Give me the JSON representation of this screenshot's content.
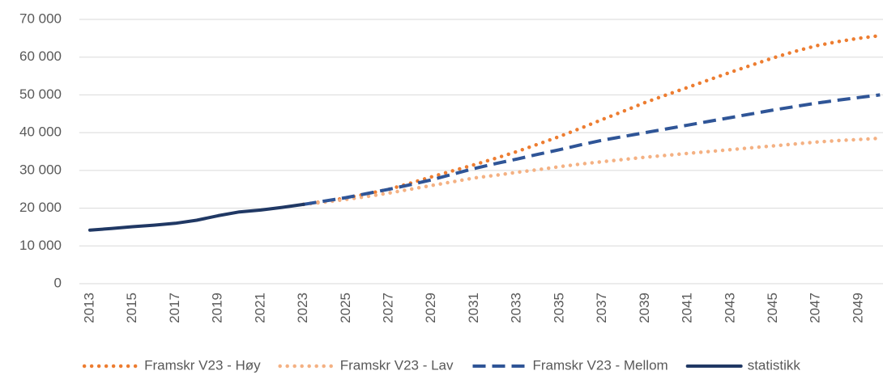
{
  "chart_data": {
    "type": "line",
    "x": [
      2013,
      2014,
      2015,
      2016,
      2017,
      2018,
      2019,
      2020,
      2021,
      2022,
      2023,
      2024,
      2025,
      2026,
      2027,
      2028,
      2029,
      2030,
      2031,
      2032,
      2033,
      2034,
      2035,
      2036,
      2037,
      2038,
      2039,
      2040,
      2041,
      2042,
      2043,
      2044,
      2045,
      2046,
      2047,
      2048,
      2049,
      2050
    ],
    "xlim": [
      2012.5,
      2050.5
    ],
    "xticks": [
      2013,
      2015,
      2017,
      2019,
      2021,
      2023,
      2025,
      2027,
      2029,
      2031,
      2033,
      2035,
      2037,
      2039,
      2041,
      2043,
      2045,
      2047,
      2049
    ],
    "ylim": [
      0,
      70000
    ],
    "yticks": [
      0,
      {
        "value": 10000,
        "label": "10 000"
      },
      {
        "value": 20000,
        "label": "20 000"
      },
      {
        "value": 30000,
        "label": "30 000"
      },
      {
        "value": 40000,
        "label": "40 000"
      },
      {
        "value": 50000,
        "label": "50 000"
      },
      {
        "value": 60000,
        "label": "60 000"
      },
      {
        "value": 70000,
        "label": "70 000"
      }
    ],
    "grid": true,
    "legend": "bottom",
    "series": [
      {
        "name": "Framskr V23 - Høy",
        "color": "#ed7d31",
        "dash": "dotted",
        "values": [
          null,
          null,
          null,
          null,
          null,
          null,
          null,
          null,
          null,
          null,
          21000,
          21800,
          22700,
          23800,
          25000,
          26600,
          28300,
          29900,
          31500,
          33200,
          35000,
          37000,
          39000,
          41200,
          43500,
          45700,
          48000,
          50000,
          52000,
          54000,
          56000,
          57900,
          59800,
          61500,
          63000,
          64100,
          65000,
          65700
        ]
      },
      {
        "name": "Framskr V23 - Lav",
        "color": "#f4b183",
        "dash": "dotted",
        "values": [
          null,
          null,
          null,
          null,
          null,
          null,
          null,
          null,
          null,
          null,
          21000,
          21600,
          22300,
          23100,
          24000,
          25000,
          26000,
          27000,
          28000,
          28700,
          29500,
          30200,
          31000,
          31700,
          32300,
          32900,
          33500,
          34000,
          34500,
          35000,
          35500,
          36000,
          36500,
          37000,
          37500,
          37900,
          38200,
          38500
        ]
      },
      {
        "name": "Framskr V23 - Mellom",
        "color": "#2f5597",
        "dash": "dashed",
        "values": [
          null,
          null,
          null,
          null,
          null,
          null,
          null,
          null,
          null,
          null,
          21000,
          21900,
          22800,
          23900,
          25000,
          26200,
          27500,
          29000,
          30500,
          31800,
          33000,
          34300,
          35500,
          36800,
          38000,
          39000,
          40000,
          41000,
          42000,
          43000,
          44000,
          45000,
          46000,
          46900,
          47800,
          48600,
          49300,
          50000
        ]
      },
      {
        "name": "statistikk",
        "color": "#203864",
        "dash": "solid",
        "values": [
          14200,
          14600,
          15100,
          15500,
          16000,
          16800,
          18000,
          19000,
          19500,
          20200,
          21000,
          null,
          null,
          null,
          null,
          null,
          null,
          null,
          null,
          null,
          null,
          null,
          null,
          null,
          null,
          null,
          null,
          null,
          null,
          null,
          null,
          null,
          null,
          null,
          null,
          null,
          null,
          null
        ]
      }
    ]
  }
}
